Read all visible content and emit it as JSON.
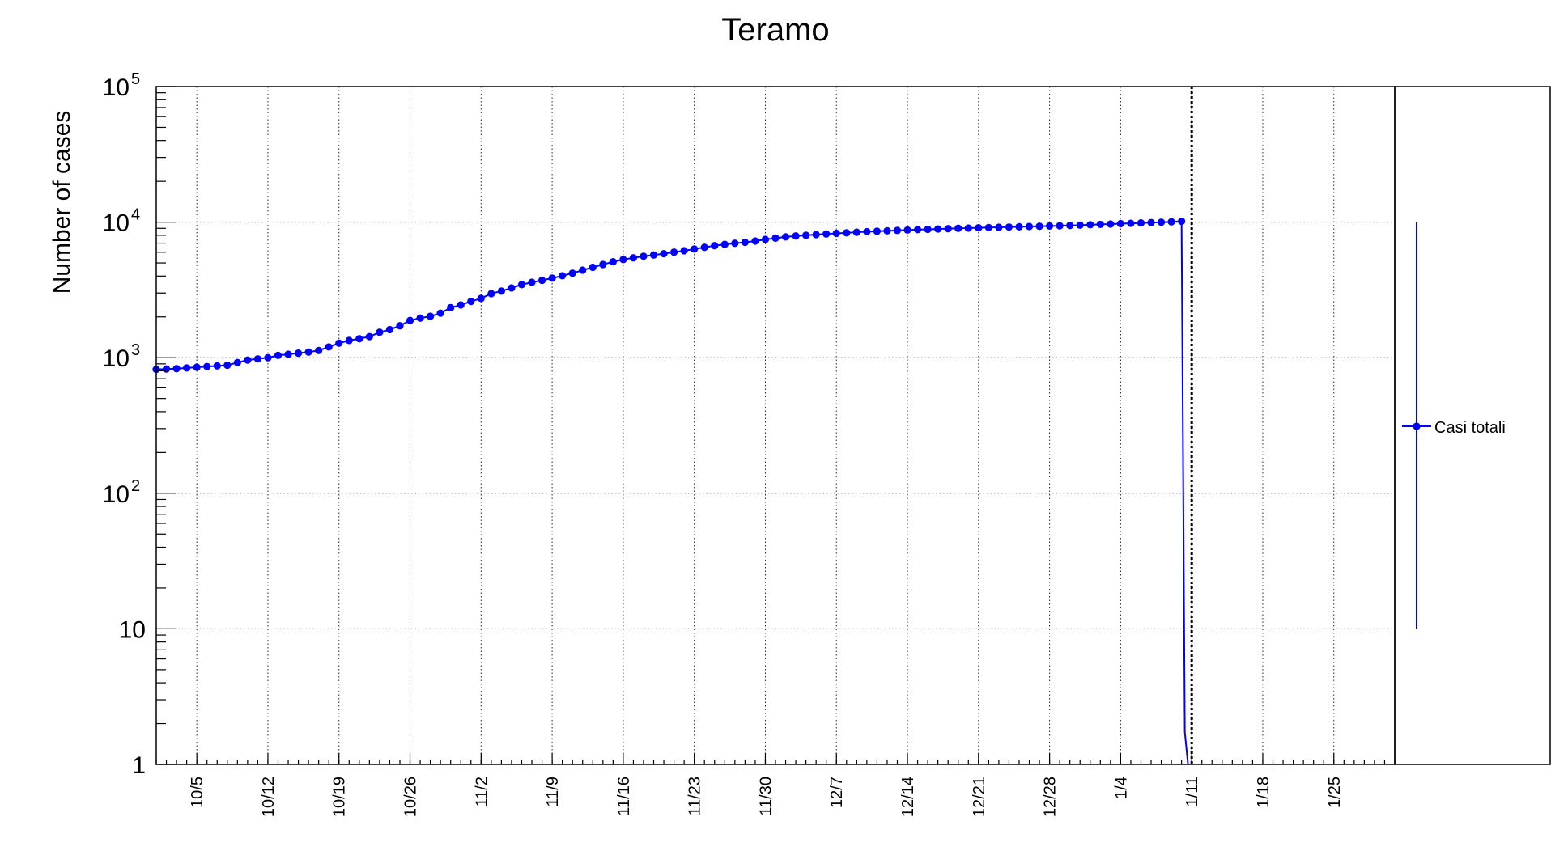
{
  "chart_data": {
    "type": "line",
    "title": "Teramo",
    "xlabel": "",
    "ylabel": "Number of cases",
    "yscale": "log",
    "ylim": [
      1,
      100000
    ],
    "xlim": [
      "2020-10-01",
      "2021-01-31"
    ],
    "grid": true,
    "x_tick_labels": [
      "10/5",
      "10/12",
      "10/19",
      "10/26",
      "11/2",
      "11/9",
      "11/16",
      "11/23",
      "11/30",
      "12/7",
      "12/14",
      "12/21",
      "12/28",
      "1/4",
      "1/11",
      "1/18",
      "1/25"
    ],
    "x_tick_dates": [
      "2020-10-05",
      "2020-10-12",
      "2020-10-19",
      "2020-10-26",
      "2020-11-02",
      "2020-11-09",
      "2020-11-16",
      "2020-11-23",
      "2020-11-30",
      "2020-12-07",
      "2020-12-14",
      "2020-12-21",
      "2020-12-28",
      "2021-01-04",
      "2021-01-11",
      "2021-01-18",
      "2021-01-25"
    ],
    "y_ticks": [
      {
        "value": 1,
        "label": "1",
        "exp": ""
      },
      {
        "value": 10,
        "label": "10",
        "exp": ""
      },
      {
        "value": 100,
        "label": "10",
        "exp": "2"
      },
      {
        "value": 1000,
        "label": "10",
        "exp": "3"
      },
      {
        "value": 10000,
        "label": "10",
        "exp": "4"
      },
      {
        "value": 100000,
        "label": "10",
        "exp": "5"
      }
    ],
    "vertical_marker": {
      "date": "2021-01-11",
      "style": "dotted"
    },
    "legend": {
      "placement": "right",
      "entries": [
        "Casi totali"
      ]
    },
    "colors": {
      "series": "#0000ff"
    },
    "series": [
      {
        "name": "Casi totali",
        "x": [
          "2020-10-01",
          "2020-10-02",
          "2020-10-03",
          "2020-10-04",
          "2020-10-05",
          "2020-10-06",
          "2020-10-07",
          "2020-10-08",
          "2020-10-09",
          "2020-10-10",
          "2020-10-11",
          "2020-10-12",
          "2020-10-13",
          "2020-10-14",
          "2020-10-15",
          "2020-10-16",
          "2020-10-17",
          "2020-10-18",
          "2020-10-19",
          "2020-10-20",
          "2020-10-21",
          "2020-10-22",
          "2020-10-23",
          "2020-10-24",
          "2020-10-25",
          "2020-10-26",
          "2020-10-27",
          "2020-10-28",
          "2020-10-29",
          "2020-10-30",
          "2020-10-31",
          "2020-11-01",
          "2020-11-02",
          "2020-11-03",
          "2020-11-04",
          "2020-11-05",
          "2020-11-06",
          "2020-11-07",
          "2020-11-08",
          "2020-11-09",
          "2020-11-10",
          "2020-11-11",
          "2020-11-12",
          "2020-11-13",
          "2020-11-14",
          "2020-11-15",
          "2020-11-16",
          "2020-11-17",
          "2020-11-18",
          "2020-11-19",
          "2020-11-20",
          "2020-11-21",
          "2020-11-22",
          "2020-11-23",
          "2020-11-24",
          "2020-11-25",
          "2020-11-26",
          "2020-11-27",
          "2020-11-28",
          "2020-11-29",
          "2020-11-30",
          "2020-12-01",
          "2020-12-02",
          "2020-12-03",
          "2020-12-04",
          "2020-12-05",
          "2020-12-06",
          "2020-12-07",
          "2020-12-08",
          "2020-12-09",
          "2020-12-10",
          "2020-12-11",
          "2020-12-12",
          "2020-12-13",
          "2020-12-14",
          "2020-12-15",
          "2020-12-16",
          "2020-12-17",
          "2020-12-18",
          "2020-12-19",
          "2020-12-20",
          "2020-12-21",
          "2020-12-22",
          "2020-12-23",
          "2020-12-24",
          "2020-12-25",
          "2020-12-26",
          "2020-12-27",
          "2020-12-28",
          "2020-12-29",
          "2020-12-30",
          "2020-12-31",
          "2021-01-01",
          "2021-01-02",
          "2021-01-03",
          "2021-01-04",
          "2021-01-05",
          "2021-01-06",
          "2021-01-07",
          "2021-01-08",
          "2021-01-09",
          "2021-01-10"
        ],
        "values": [
          820,
          825,
          830,
          840,
          850,
          860,
          870,
          880,
          920,
          960,
          980,
          1000,
          1040,
          1060,
          1080,
          1100,
          1130,
          1200,
          1280,
          1340,
          1380,
          1430,
          1540,
          1610,
          1720,
          1880,
          1960,
          2020,
          2130,
          2340,
          2450,
          2600,
          2740,
          2970,
          3100,
          3270,
          3460,
          3600,
          3720,
          3860,
          4020,
          4200,
          4420,
          4640,
          4870,
          5100,
          5300,
          5450,
          5600,
          5720,
          5850,
          6000,
          6150,
          6330,
          6520,
          6700,
          6850,
          6980,
          7100,
          7250,
          7450,
          7620,
          7780,
          7900,
          8000,
          8090,
          8180,
          8260,
          8340,
          8420,
          8500,
          8570,
          8630,
          8690,
          8750,
          8800,
          8850,
          8900,
          8950,
          9000,
          9040,
          9080,
          9120,
          9160,
          9200,
          9240,
          9280,
          9320,
          9360,
          9400,
          9450,
          9500,
          9560,
          9620,
          9680,
          9740,
          9800,
          9860,
          9920,
          9980,
          10050,
          10150
        ]
      }
    ]
  }
}
